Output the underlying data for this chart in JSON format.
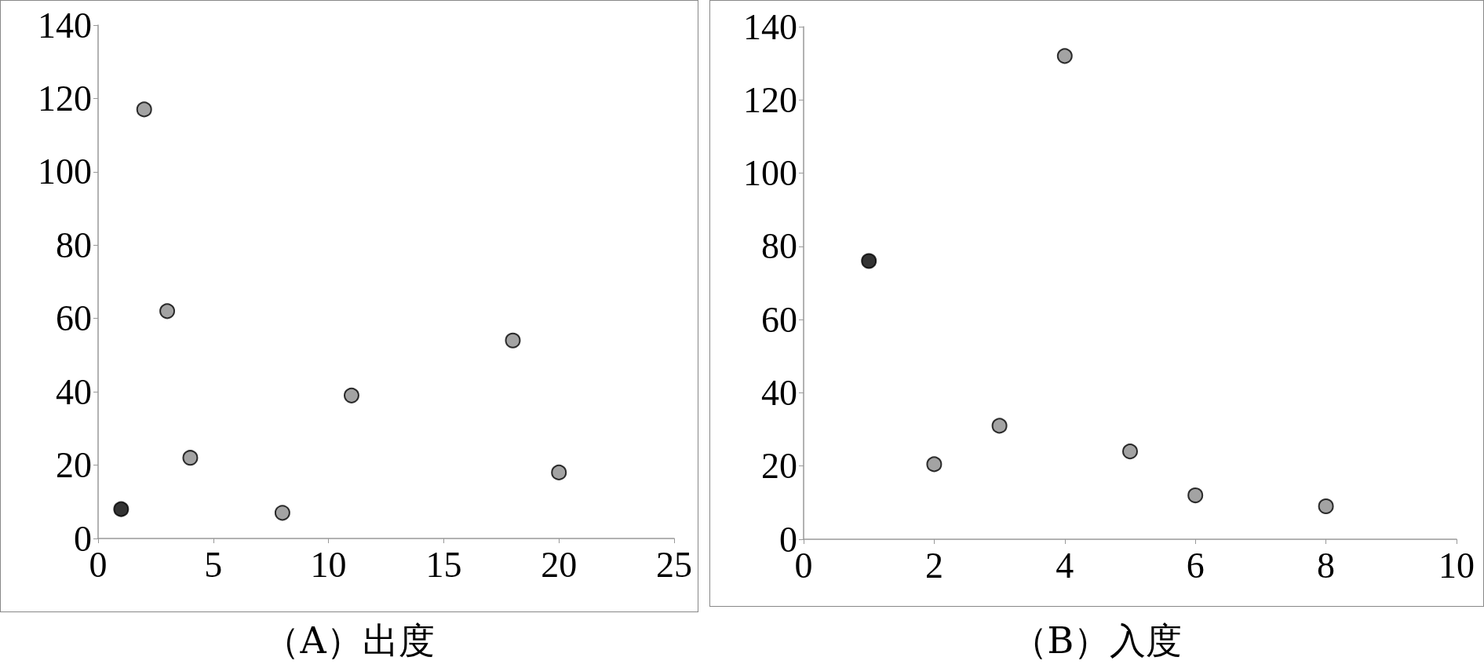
{
  "chart_data": [
    {
      "type": "scatter",
      "xlabel": "（A）出度",
      "x": [
        1,
        2,
        3,
        4,
        8,
        11,
        18,
        20
      ],
      "values": [
        8,
        117,
        62,
        22,
        7,
        39,
        54,
        18
      ],
      "colors": [
        "#000000",
        "#8c8c8c",
        "#8c8c8c",
        "#8c8c8c",
        "#8c8c8c",
        "#8c8c8c",
        "#8c8c8c",
        "#8c8c8c"
      ],
      "xlim": [
        0,
        25
      ],
      "xticks": [
        0,
        5,
        10,
        15,
        20,
        25
      ],
      "ylim": [
        0,
        140
      ],
      "yticks": [
        0,
        20,
        40,
        60,
        80,
        100,
        120,
        140
      ],
      "marker": "circle"
    },
    {
      "type": "scatter",
      "xlabel": "（B）入度",
      "x": [
        1,
        2,
        3,
        4,
        5,
        6,
        8
      ],
      "values": [
        76,
        20.5,
        31,
        132,
        24,
        12,
        9
      ],
      "colors": [
        "#000000",
        "#8c8c8c",
        "#8c8c8c",
        "#8c8c8c",
        "#8c8c8c",
        "#8c8c8c",
        "#8c8c8c"
      ],
      "xlim": [
        0,
        10
      ],
      "xticks": [
        0,
        2,
        4,
        6,
        8,
        10
      ],
      "ylim": [
        0,
        140
      ],
      "yticks": [
        0,
        20,
        40,
        60,
        80,
        100,
        120,
        140
      ],
      "marker": "circle"
    }
  ]
}
